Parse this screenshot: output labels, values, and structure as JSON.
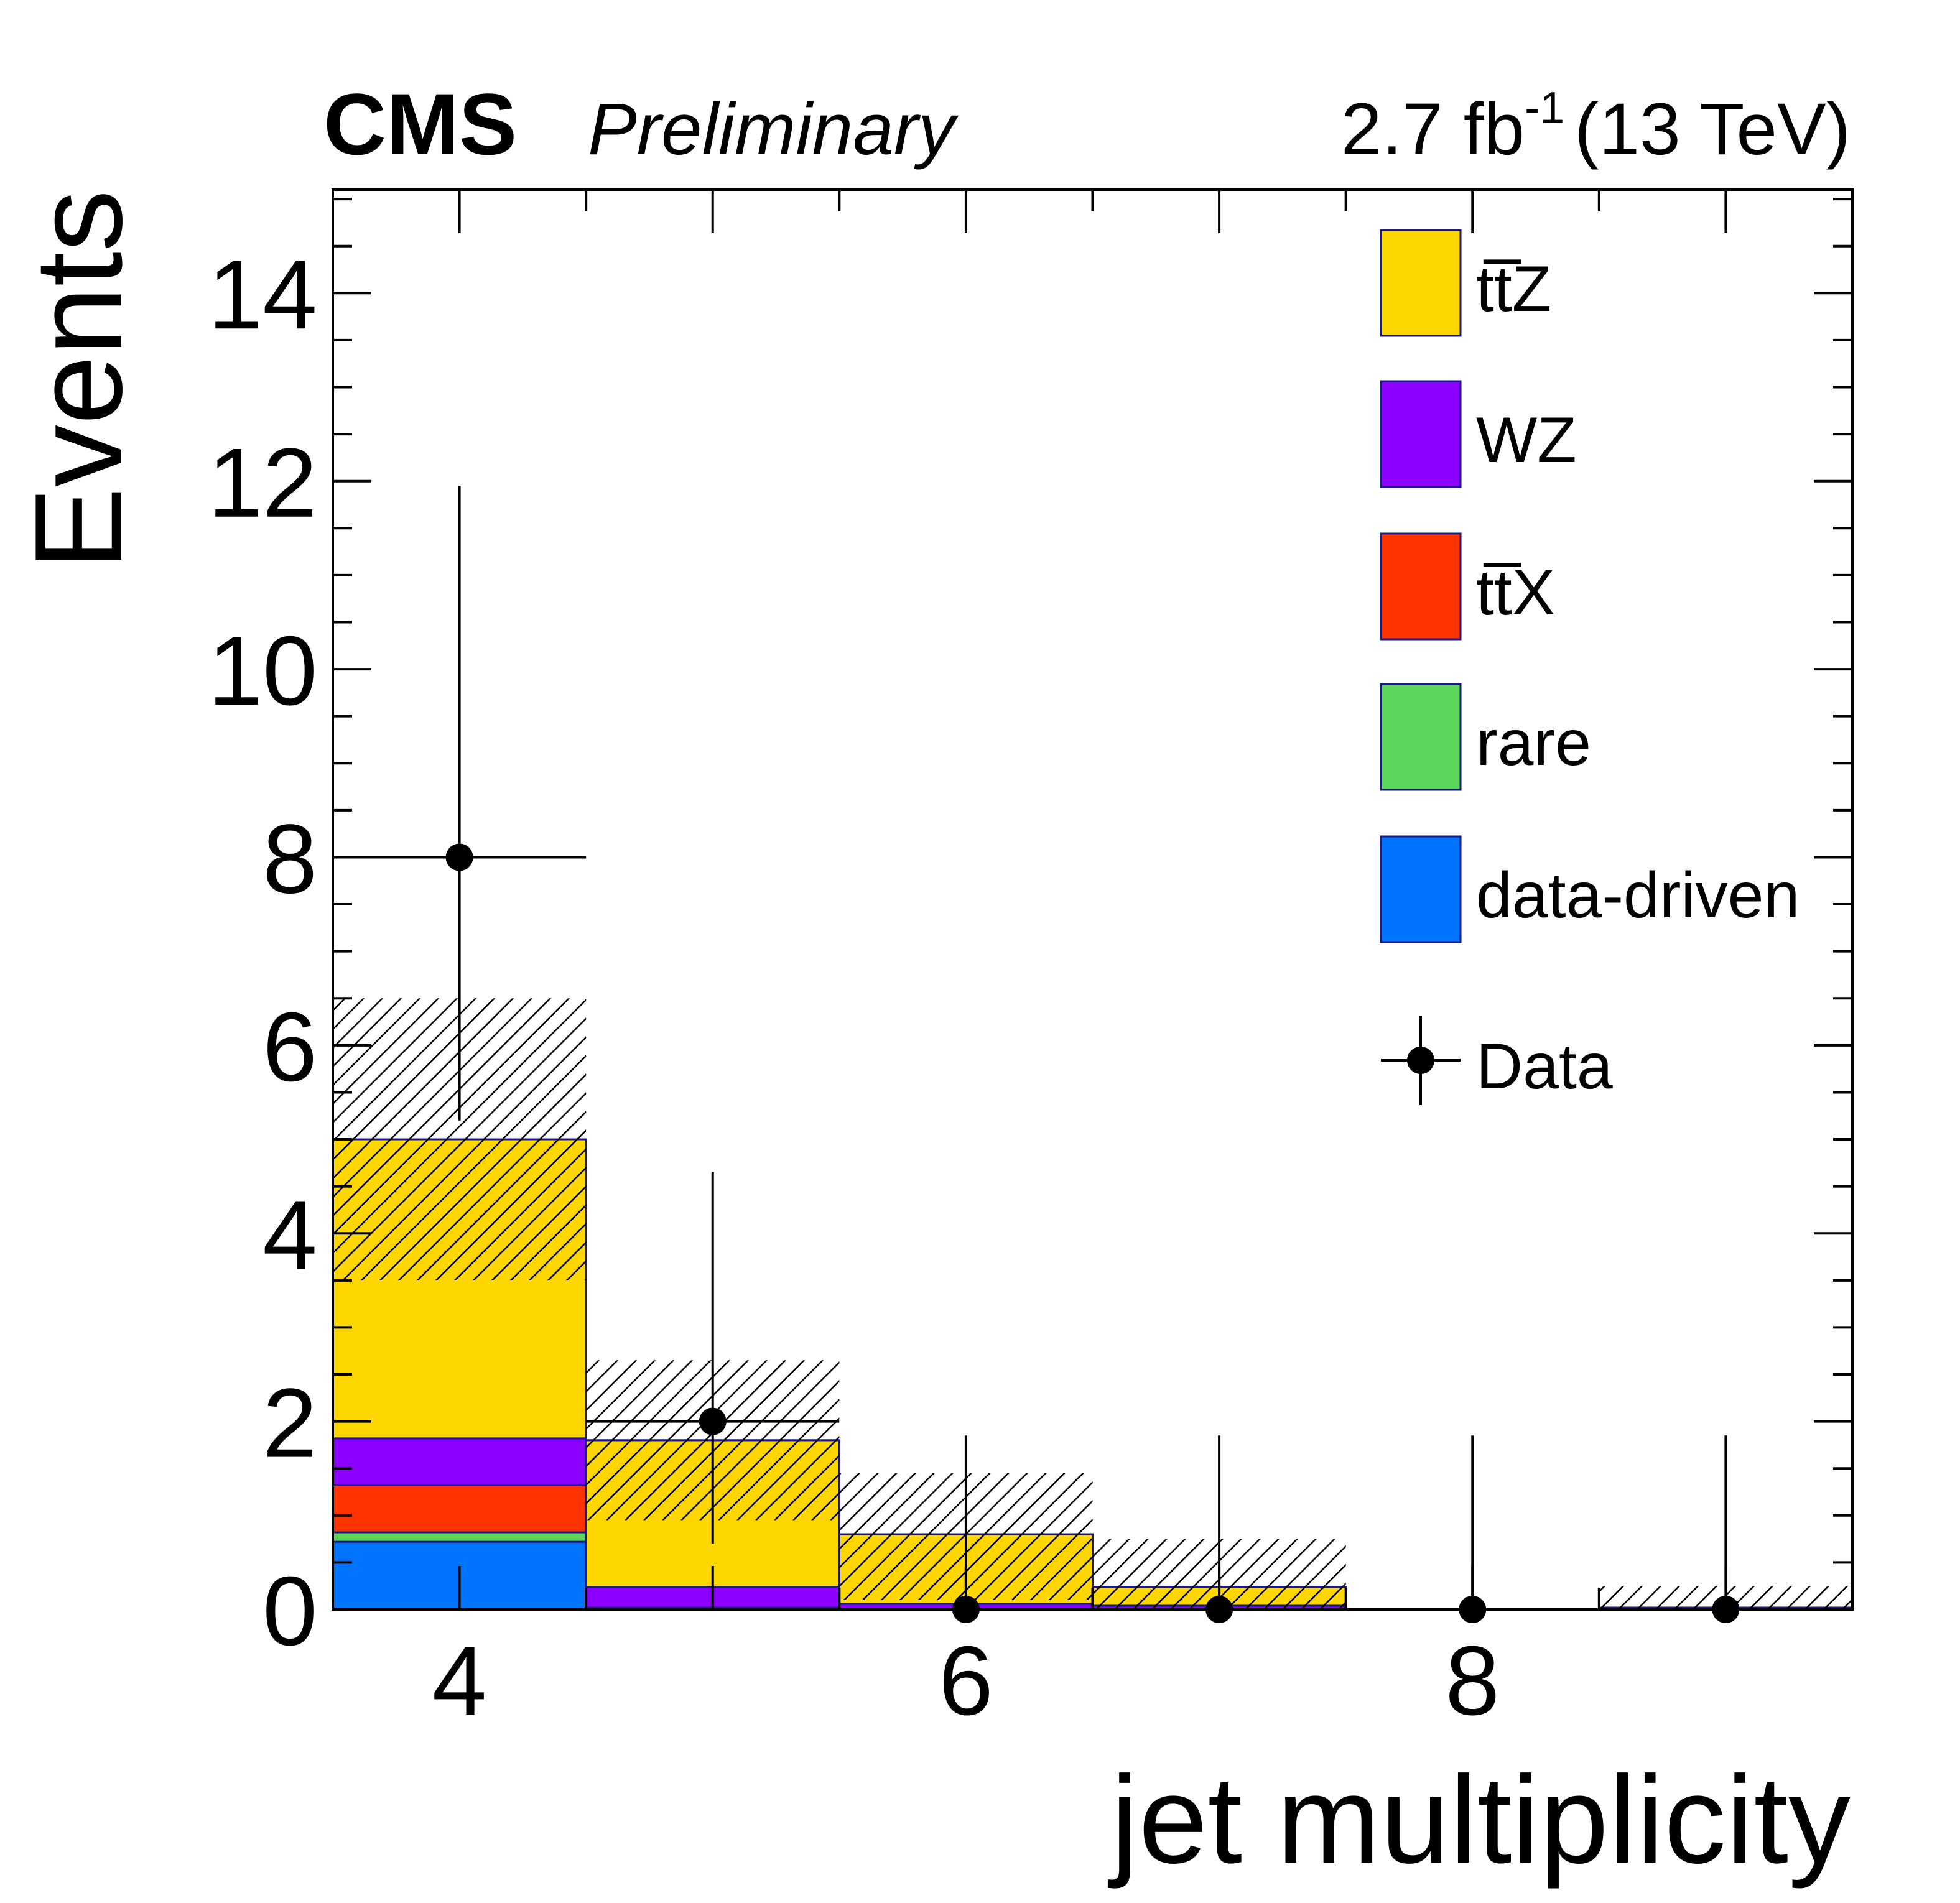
{
  "header": {
    "experiment": "CMS",
    "status": "Preliminary",
    "lumi_value": "2.7 fb",
    "lumi_exp": "-1",
    "lumi_energy": "(13 TeV)"
  },
  "chart_data": {
    "type": "bar",
    "stacked": true,
    "xlabel": "jet multiplicity",
    "ylabel": "Events",
    "xlim": [
      3.5,
      9.5
    ],
    "ylim": [
      0,
      15.1
    ],
    "x_ticks": [
      4,
      6,
      8
    ],
    "y_ticks": [
      0,
      2,
      4,
      6,
      8,
      10,
      12,
      14
    ],
    "legend_position": "top-right",
    "bins": [
      {
        "low": 3.5,
        "high": 4.5,
        "center": 4
      },
      {
        "low": 4.5,
        "high": 5.5,
        "center": 5
      },
      {
        "low": 5.5,
        "high": 6.5,
        "center": 6
      },
      {
        "low": 6.5,
        "high": 7.5,
        "center": 7
      },
      {
        "low": 7.5,
        "high": 8.5,
        "center": 8
      },
      {
        "low": 8.5,
        "high": 9.5,
        "center": 9
      }
    ],
    "series": [
      {
        "name": "data-driven",
        "color": "#0074ff",
        "values": [
          0.72,
          0.0,
          0.0,
          0.0,
          0.0,
          0.0
        ]
      },
      {
        "name": "rare",
        "color": "#5bd65b",
        "values": [
          0.1,
          0.0,
          0.0,
          0.0,
          0.0,
          0.0
        ]
      },
      {
        "name": "tt̅X",
        "color": "#ff3300",
        "values": [
          0.5,
          0.02,
          0.01,
          0.01,
          0.0,
          0.0
        ]
      },
      {
        "name": "WZ",
        "color": "#8c00ff",
        "values": [
          0.5,
          0.22,
          0.05,
          0.03,
          0.0,
          0.02
        ]
      },
      {
        "name": "tt̅Z",
        "color": "#ffd700",
        "values": [
          3.18,
          1.56,
          0.74,
          0.2,
          0.0,
          0.0
        ]
      }
    ],
    "uncertainty_band": {
      "low": [
        3.5,
        0.95,
        0.1,
        0.0,
        0.0,
        0.0
      ],
      "high": [
        6.5,
        2.65,
        1.45,
        0.75,
        0.0,
        0.25
      ]
    },
    "data": {
      "name": "Data",
      "x": [
        4,
        5,
        6,
        7,
        8,
        9
      ],
      "y": [
        8,
        2,
        0,
        0,
        0,
        0
      ],
      "err_low": [
        2.8,
        1.3,
        0,
        0,
        0,
        0
      ],
      "err_high": [
        3.95,
        2.65,
        1.85,
        1.85,
        1.85,
        1.85
      ]
    },
    "legend": [
      {
        "label": "tt̅Z",
        "type": "box",
        "color": "#ffd700"
      },
      {
        "label": "WZ",
        "type": "box",
        "color": "#8c00ff"
      },
      {
        "label": "tt̅X",
        "type": "box",
        "color": "#ff3300"
      },
      {
        "label": "rare",
        "type": "box",
        "color": "#5bd65b"
      },
      {
        "label": "data-driven",
        "type": "box",
        "color": "#0074ff"
      },
      {
        "label": "Data",
        "type": "marker",
        "color": "#000000"
      }
    ]
  }
}
